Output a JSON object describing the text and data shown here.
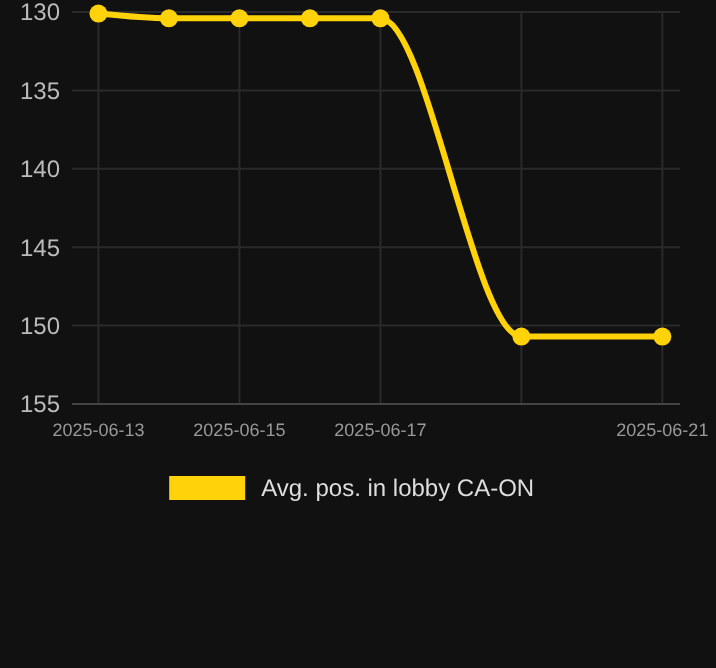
{
  "chart_data": {
    "type": "line",
    "x": [
      "2025-06-13",
      "2025-06-14",
      "2025-06-15",
      "2025-06-16",
      "2025-06-17",
      "2025-06-19",
      "2025-06-21"
    ],
    "series": [
      {
        "name": "Avg. pos. in lobby CA-ON",
        "color": "#ffd20a",
        "values": [
          130.1,
          130.4,
          130.4,
          130.4,
          130.4,
          150.7,
          150.7
        ]
      }
    ],
    "ylim": [
      155,
      130
    ],
    "yticks": [
      130,
      135,
      140,
      145,
      150,
      155
    ],
    "xlim": [
      "2025-06-12T15:00",
      "2025-06-21T06:00"
    ],
    "xticks": [
      {
        "value": "2025-06-13",
        "label": "2025-06-13"
      },
      {
        "value": "2025-06-15",
        "label": "2025-06-15"
      },
      {
        "value": "2025-06-17",
        "label": "2025-06-17"
      },
      {
        "value": "2025-06-19",
        "label": null
      },
      {
        "value": "2025-06-21",
        "label": "2025-06-21"
      }
    ],
    "grid": true,
    "legend": "bottom",
    "marker": "circle",
    "line_style": "solid"
  }
}
